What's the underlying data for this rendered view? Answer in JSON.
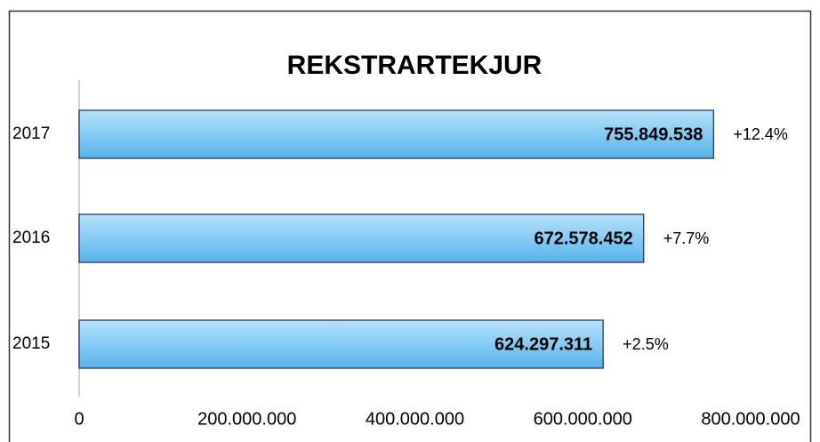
{
  "chart_data": {
    "type": "barh",
    "title": "REKSTRARTEKJUR",
    "categories": [
      "2015",
      "2016",
      "2017"
    ],
    "values": [
      624297311,
      672578452,
      755849538
    ],
    "value_labels": [
      "624.297.311",
      "672.578.452",
      "755.849.538"
    ],
    "changes": [
      "+2.5%",
      "+7.7%",
      "+12.4%"
    ],
    "color": "#7cc8f4",
    "xlim": [
      0,
      800000000
    ],
    "xticks": [
      0,
      {
        "value": 200000000,
        "label": "200.000.000"
      },
      {
        "value": 400000000,
        "label": "400.000.000"
      },
      {
        "value": 600000000,
        "label": "600.000.000"
      },
      {
        "value": 800000000,
        "label": "800.000.000"
      }
    ],
    "grid": false
  }
}
